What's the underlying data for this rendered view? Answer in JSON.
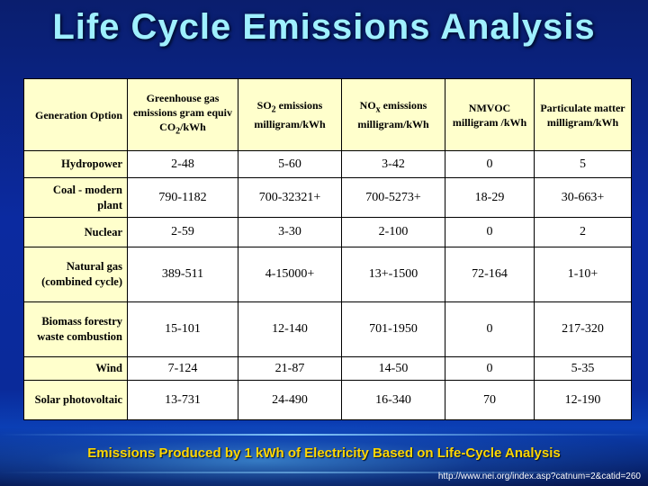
{
  "title": "Life Cycle Emissions Analysis",
  "table": {
    "headers": {
      "option": "Generation Option",
      "ghg_line1": "Greenhouse gas emissions",
      "ghg_line2": "gram equiv",
      "ghg_formula": "CO",
      "ghg_sub": "2",
      "ghg_unit": "/kWh",
      "so2_formula": "SO",
      "so2_sub": "2",
      "so2_rest": " emissions milligram/kWh",
      "nox_formula": "NO",
      "nox_sub": "x",
      "nox_rest": " emissions milligram/kWh",
      "nmvoc": "NMVOC milligram /kWh",
      "particulate": "Particulate matter milligram/kWh"
    },
    "rows": [
      {
        "option": "Hydropower",
        "ghg": "2-48",
        "so2": "5-60",
        "nox": "3-42",
        "nmvoc": "0",
        "pm": "5"
      },
      {
        "option": "Coal - modern plant",
        "ghg": "790-1182",
        "so2": "700-32321+",
        "nox": "700-5273+",
        "nmvoc": "18-29",
        "pm": "30-663+"
      },
      {
        "option": "Nuclear",
        "ghg": "2-59",
        "so2": "3-30",
        "nox": "2-100",
        "nmvoc": "0",
        "pm": "2"
      },
      {
        "option": "Natural gas (combined cycle)",
        "ghg": "389-511",
        "so2": "4-15000+",
        "nox": "13+-1500",
        "nmvoc": "72-164",
        "pm": "1-10+"
      },
      {
        "option": "Biomass forestry waste combustion",
        "ghg": "15-101",
        "so2": "12-140",
        "nox": "701-1950",
        "nmvoc": "0",
        "pm": "217-320"
      },
      {
        "option": "Wind",
        "ghg": "7-124",
        "so2": "21-87",
        "nox": "14-50",
        "nmvoc": "0",
        "pm": "5-35"
      },
      {
        "option": "Solar photovoltaic",
        "ghg": "13-731",
        "so2": "24-490",
        "nox": "16-340",
        "nmvoc": "70",
        "pm": "12-190"
      }
    ]
  },
  "caption": "Emissions Produced by 1 kWh of Electricity Based on Life-Cycle Analysis",
  "source": "http://www.nei.org/index.asp?catnum=2&catid=260",
  "colors": {
    "title": "#9ff0ff",
    "header_bg": "#ffffcc",
    "caption": "#ffd700"
  }
}
